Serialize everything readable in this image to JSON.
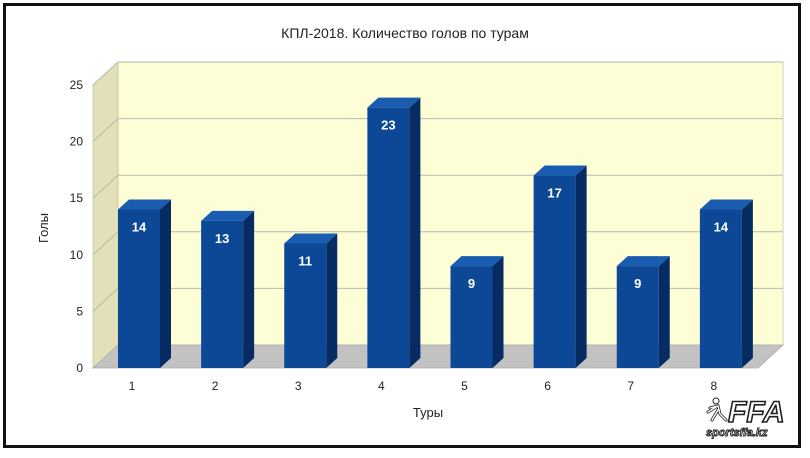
{
  "chart_data": {
    "type": "bar",
    "title": "КПЛ-2018. Количество голов по турам",
    "xlabel": "Туры",
    "ylabel": "Голы",
    "categories": [
      "1",
      "2",
      "3",
      "4",
      "5",
      "6",
      "7",
      "8"
    ],
    "values": [
      14,
      13,
      11,
      23,
      9,
      17,
      9,
      14
    ],
    "ylim": [
      0,
      25
    ],
    "yticks": [
      0,
      5,
      10,
      15,
      20,
      25
    ],
    "grid": true,
    "data_labels": true,
    "colors": {
      "bar_front": "#0c4895",
      "bar_side": "#062c63",
      "bar_top": "#1a5cb0",
      "back_wall": "#fdfdd6",
      "side_wall": "#e3dfb8",
      "floor": "#c2c2c2",
      "grid": "#b9b9a8"
    }
  },
  "watermark": {
    "logo": "FFA",
    "site": "sportsffa.kz"
  }
}
